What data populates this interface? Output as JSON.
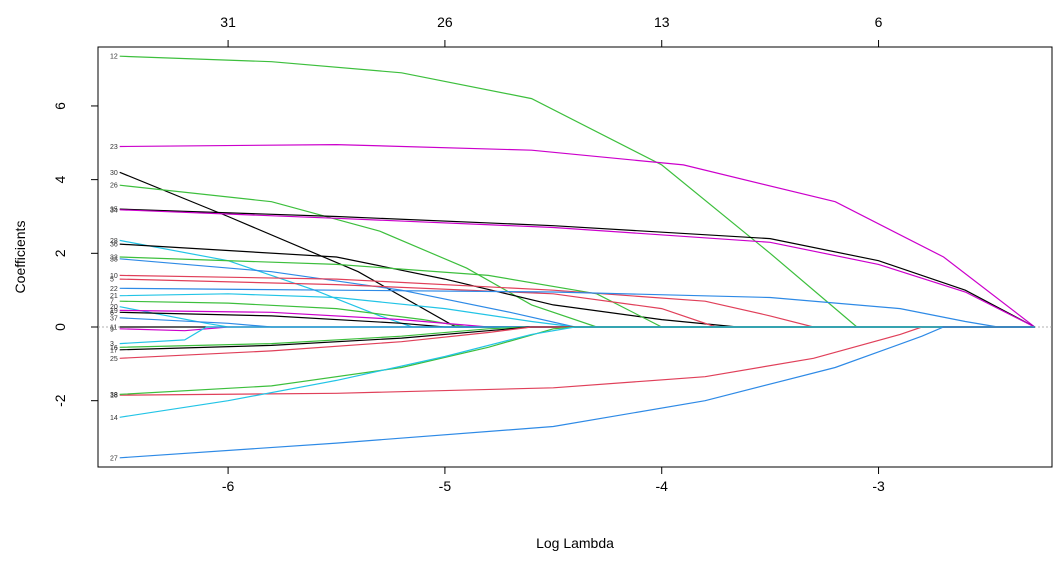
{
  "chart_data": {
    "type": "line",
    "xlabel": "Log Lambda",
    "ylabel": "Coefficients",
    "xlim": [
      -6.6,
      -2.2
    ],
    "ylim": [
      -3.8,
      7.6
    ],
    "x_ticks": [
      -6,
      -5,
      -4,
      -3
    ],
    "y_ticks": [
      -2,
      0,
      2,
      4,
      6
    ],
    "top_axis": {
      "positions": [
        -6,
        -5,
        -4,
        -3
      ],
      "labels": [
        "31",
        "26",
        "13",
        "6"
      ]
    },
    "zero_line": true,
    "grid": false,
    "legend": "none",
    "x_start": -6.5,
    "x_end": -2.28,
    "series": [
      {
        "label": "12",
        "color": "#3dbf3d",
        "points": [
          [
            -6.5,
            7.35
          ],
          [
            -5.8,
            7.2
          ],
          [
            -5.2,
            6.9
          ],
          [
            -4.6,
            6.2
          ],
          [
            -4.0,
            4.4
          ],
          [
            -3.5,
            2.0
          ],
          [
            -3.1,
            0
          ]
        ]
      },
      {
        "label": "23",
        "color": "#cc00cc",
        "points": [
          [
            -6.5,
            4.9
          ],
          [
            -5.5,
            4.95
          ],
          [
            -4.6,
            4.8
          ],
          [
            -3.9,
            4.4
          ],
          [
            -3.2,
            3.4
          ],
          [
            -2.7,
            1.9
          ],
          [
            -2.28,
            0
          ]
        ]
      },
      {
        "label": "30",
        "color": "#000000",
        "points": [
          [
            -6.5,
            4.2
          ],
          [
            -6.0,
            3.0
          ],
          [
            -5.4,
            1.5
          ],
          [
            -4.95,
            0
          ]
        ]
      },
      {
        "label": "26",
        "color": "#3dbf3d",
        "points": [
          [
            -6.5,
            3.85
          ],
          [
            -5.8,
            3.4
          ],
          [
            -5.3,
            2.6
          ],
          [
            -4.9,
            1.6
          ],
          [
            -4.6,
            0.6
          ],
          [
            -4.3,
            0
          ]
        ]
      },
      {
        "label": "35",
        "color": "#000000",
        "points": [
          [
            -6.5,
            3.2
          ],
          [
            -5.5,
            3.0
          ],
          [
            -4.5,
            2.75
          ],
          [
            -3.5,
            2.4
          ],
          [
            -3.0,
            1.8
          ],
          [
            -2.6,
            1.0
          ],
          [
            -2.28,
            0
          ]
        ]
      },
      {
        "label": "34",
        "color": "#cc00cc",
        "points": [
          [
            -6.5,
            3.18
          ],
          [
            -5.5,
            2.95
          ],
          [
            -4.5,
            2.7
          ],
          [
            -3.5,
            2.3
          ],
          [
            -3.0,
            1.7
          ],
          [
            -2.6,
            0.95
          ],
          [
            -2.28,
            0
          ]
        ]
      },
      {
        "label": "28",
        "color": "#22c4e6",
        "points": [
          [
            -6.5,
            2.35
          ],
          [
            -6.0,
            1.8
          ],
          [
            -5.6,
            1.0
          ],
          [
            -5.3,
            0.3
          ],
          [
            -5.15,
            0
          ]
        ]
      },
      {
        "label": "36",
        "color": "#000000",
        "points": [
          [
            -6.5,
            2.25
          ],
          [
            -5.5,
            1.9
          ],
          [
            -5.0,
            1.3
          ],
          [
            -4.5,
            0.6
          ],
          [
            -4.0,
            0.2
          ],
          [
            -3.65,
            0
          ]
        ]
      },
      {
        "label": "32",
        "color": "#3dbf3d",
        "points": [
          [
            -6.5,
            1.9
          ],
          [
            -5.5,
            1.7
          ],
          [
            -4.8,
            1.4
          ],
          [
            -4.3,
            0.9
          ],
          [
            -4.0,
            0
          ]
        ]
      },
      {
        "label": "33",
        "color": "#2e8ae6",
        "points": [
          [
            -6.5,
            1.85
          ],
          [
            -5.8,
            1.5
          ],
          [
            -5.2,
            1.0
          ],
          [
            -4.7,
            0.4
          ],
          [
            -4.4,
            0
          ]
        ]
      },
      {
        "label": "10",
        "color": "#e0405a",
        "points": [
          [
            -6.5,
            1.4
          ],
          [
            -5.5,
            1.3
          ],
          [
            -4.5,
            1.0
          ],
          [
            -3.8,
            0.7
          ],
          [
            -3.5,
            0.3
          ],
          [
            -3.3,
            0
          ]
        ]
      },
      {
        "label": "5",
        "color": "#e0405a",
        "points": [
          [
            -6.5,
            1.3
          ],
          [
            -5.5,
            1.15
          ],
          [
            -4.5,
            0.9
          ],
          [
            -4.0,
            0.5
          ],
          [
            -3.75,
            0
          ]
        ]
      },
      {
        "label": "22",
        "color": "#2e8ae6",
        "points": [
          [
            -6.5,
            1.05
          ],
          [
            -5.5,
            1.0
          ],
          [
            -4.5,
            0.95
          ],
          [
            -3.5,
            0.8
          ],
          [
            -2.9,
            0.5
          ],
          [
            -2.6,
            0.15
          ],
          [
            -2.45,
            0
          ]
        ]
      },
      {
        "label": "21",
        "color": "#22c4e6",
        "points": [
          [
            -6.5,
            0.85
          ],
          [
            -6.0,
            0.9
          ],
          [
            -5.5,
            0.8
          ],
          [
            -5.0,
            0.5
          ],
          [
            -4.6,
            0.15
          ],
          [
            -4.4,
            0
          ]
        ]
      },
      {
        "label": "7",
        "color": "#3dbf3d",
        "points": [
          [
            -6.5,
            0.7
          ],
          [
            -6.0,
            0.65
          ],
          [
            -5.5,
            0.5
          ],
          [
            -5.1,
            0.2
          ],
          [
            -4.9,
            0
          ]
        ]
      },
      {
        "label": "20",
        "color": "#22c4e6",
        "points": [
          [
            -6.5,
            0.55
          ],
          [
            -6.1,
            0.1
          ],
          [
            -6.0,
            0
          ]
        ]
      },
      {
        "label": "19",
        "color": "#cc00cc",
        "points": [
          [
            -6.5,
            0.45
          ],
          [
            -5.8,
            0.4
          ],
          [
            -5.2,
            0.2
          ],
          [
            -4.8,
            0
          ]
        ]
      },
      {
        "label": "6",
        "color": "#000000",
        "points": [
          [
            -6.5,
            0.4
          ],
          [
            -5.8,
            0.3
          ],
          [
            -5.2,
            0.1
          ],
          [
            -5.0,
            0
          ]
        ]
      },
      {
        "label": "37",
        "color": "#2e8ae6",
        "points": [
          [
            -6.5,
            0.25
          ],
          [
            -6.0,
            0.1
          ],
          [
            -5.8,
            0
          ]
        ]
      },
      {
        "label": "11",
        "color": "#000000",
        "points": [
          [
            -6.5,
            0.0
          ],
          [
            -5.5,
            0.0
          ],
          [
            -4.5,
            0.0
          ],
          [
            -3.5,
            0.0
          ],
          [
            -2.28,
            0.0
          ]
        ]
      },
      {
        "label": "9",
        "color": "#cc00cc",
        "points": [
          [
            -6.5,
            -0.05
          ],
          [
            -6.2,
            -0.1
          ],
          [
            -6.0,
            0
          ]
        ]
      },
      {
        "label": "3",
        "color": "#22c4e6",
        "points": [
          [
            -6.5,
            -0.45
          ],
          [
            -6.2,
            -0.35
          ],
          [
            -6.1,
            0
          ]
        ]
      },
      {
        "label": "16",
        "color": "#3dbf3d",
        "points": [
          [
            -6.5,
            -0.55
          ],
          [
            -5.8,
            -0.45
          ],
          [
            -5.2,
            -0.25
          ],
          [
            -4.8,
            -0.05
          ],
          [
            -4.6,
            0
          ]
        ]
      },
      {
        "label": "17",
        "color": "#000000",
        "points": [
          [
            -6.5,
            -0.62
          ],
          [
            -5.8,
            -0.5
          ],
          [
            -5.2,
            -0.3
          ],
          [
            -4.8,
            -0.1
          ],
          [
            -4.6,
            0
          ]
        ]
      },
      {
        "label": "25",
        "color": "#e0405a",
        "points": [
          [
            -6.5,
            -0.85
          ],
          [
            -5.8,
            -0.65
          ],
          [
            -5.2,
            -0.4
          ],
          [
            -4.8,
            -0.15
          ],
          [
            -4.6,
            0
          ]
        ]
      },
      {
        "label": "18",
        "color": "#e0405a",
        "points": [
          [
            -6.5,
            -1.85
          ],
          [
            -5.5,
            -1.8
          ],
          [
            -4.5,
            -1.65
          ],
          [
            -3.8,
            -1.35
          ],
          [
            -3.3,
            -0.85
          ],
          [
            -2.9,
            -0.2
          ],
          [
            -2.8,
            0
          ]
        ]
      },
      {
        "label": "38",
        "color": "#3dbf3d",
        "points": [
          [
            -6.5,
            -1.83
          ],
          [
            -5.8,
            -1.6
          ],
          [
            -5.2,
            -1.1
          ],
          [
            -4.8,
            -0.55
          ],
          [
            -4.5,
            -0.05
          ],
          [
            -4.4,
            0
          ]
        ]
      },
      {
        "label": "14",
        "color": "#22c4e6",
        "points": [
          [
            -6.5,
            -2.45
          ],
          [
            -6.0,
            -2.0
          ],
          [
            -5.5,
            -1.45
          ],
          [
            -5.0,
            -0.8
          ],
          [
            -4.6,
            -0.2
          ],
          [
            -4.4,
            0
          ]
        ]
      },
      {
        "label": "27",
        "color": "#2e8ae6",
        "points": [
          [
            -6.5,
            -3.55
          ],
          [
            -5.5,
            -3.15
          ],
          [
            -4.5,
            -2.7
          ],
          [
            -3.8,
            -2.0
          ],
          [
            -3.2,
            -1.1
          ],
          [
            -2.8,
            -0.25
          ],
          [
            -2.7,
            0
          ]
        ]
      }
    ]
  }
}
